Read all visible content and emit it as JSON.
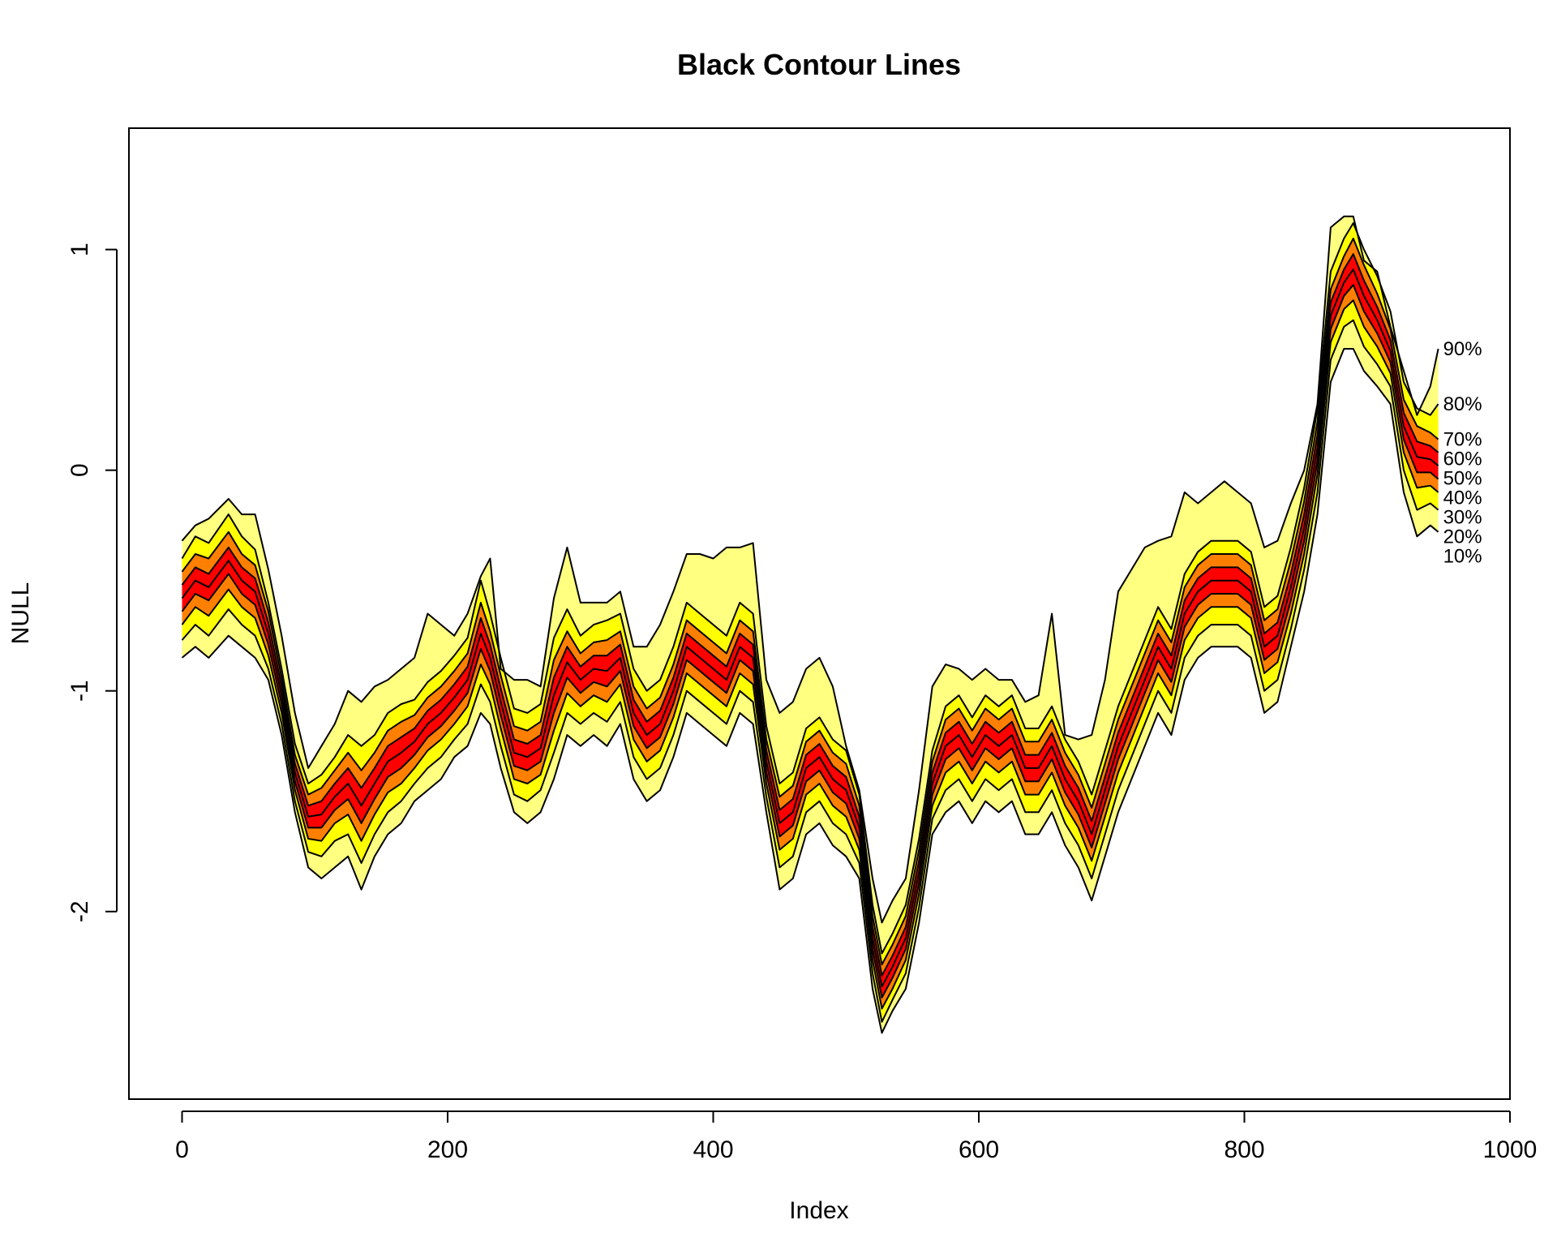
{
  "chart_data": {
    "type": "area",
    "title": "Black Contour Lines",
    "xlabel": "Index",
    "ylabel": "NULL",
    "xlim": [
      -40,
      1000
    ],
    "ylim": [
      -2.85,
      1.55
    ],
    "x_ticks": [
      0,
      200,
      400,
      600,
      800,
      1000
    ],
    "x_tick_labels": [
      "0",
      "200",
      "400",
      "600",
      "800",
      "1000"
    ],
    "y_ticks": [
      -2,
      -1,
      0,
      1
    ],
    "y_tick_labels": [
      "-2",
      "-1",
      "0",
      "1"
    ],
    "grid": false,
    "legend": "none",
    "band_colors": [
      "#ffff80",
      "#ffff00",
      "#ff8000",
      "#ff0000",
      "#ff0000",
      "#ff8000",
      "#ffff00",
      "#ffff80"
    ],
    "contour_color": "#000000",
    "x": [
      0,
      10,
      20,
      35,
      45,
      55,
      65,
      75,
      85,
      95,
      105,
      115,
      125,
      135,
      145,
      155,
      165,
      175,
      185,
      195,
      205,
      215,
      225,
      232,
      240,
      250,
      260,
      270,
      280,
      290,
      300,
      310,
      320,
      330,
      340,
      350,
      360,
      370,
      380,
      390,
      400,
      410,
      420,
      430,
      440,
      450,
      460,
      470,
      480,
      490,
      500,
      510,
      520,
      527,
      535,
      545,
      555,
      565,
      575,
      585,
      595,
      605,
      615,
      625,
      635,
      645,
      655,
      665,
      675,
      685,
      695,
      705,
      715,
      725,
      735,
      745,
      755,
      765,
      775,
      785,
      795,
      805,
      815,
      825,
      835,
      845,
      855,
      865,
      875,
      882,
      890,
      900,
      910,
      920,
      930,
      940,
      946
    ],
    "series": [
      {
        "name": "10%",
        "values": [
          -0.85,
          -0.8,
          -0.85,
          -0.75,
          -0.8,
          -0.85,
          -0.95,
          -1.2,
          -1.55,
          -1.8,
          -1.85,
          -1.8,
          -1.75,
          -1.9,
          -1.75,
          -1.65,
          -1.6,
          -1.5,
          -1.45,
          -1.4,
          -1.3,
          -1.25,
          -1.1,
          -1.15,
          -1.35,
          -1.55,
          -1.6,
          -1.55,
          -1.4,
          -1.2,
          -1.25,
          -1.2,
          -1.25,
          -1.15,
          -1.4,
          -1.5,
          -1.45,
          -1.3,
          -1.1,
          -1.15,
          -1.2,
          -1.25,
          -1.1,
          -1.15,
          -1.55,
          -1.9,
          -1.85,
          -1.65,
          -1.6,
          -1.7,
          -1.75,
          -1.85,
          -2.35,
          -2.55,
          -2.45,
          -2.35,
          -2.05,
          -1.65,
          -1.55,
          -1.5,
          -1.6,
          -1.5,
          -1.55,
          -1.5,
          -1.65,
          -1.65,
          -1.55,
          -1.7,
          -1.8,
          -1.95,
          -1.75,
          -1.55,
          -1.4,
          -1.25,
          -1.1,
          -1.2,
          -0.95,
          -0.85,
          -0.8,
          -0.8,
          -0.8,
          -0.85,
          -1.1,
          -1.05,
          -0.8,
          -0.55,
          -0.2,
          0.4,
          0.55,
          0.55,
          0.45,
          0.38,
          0.3,
          -0.1,
          -0.3,
          -0.25,
          -0.28
        ]
      },
      {
        "name": "20%",
        "values": [
          -0.77,
          -0.7,
          -0.75,
          -0.63,
          -0.7,
          -0.75,
          -0.9,
          -1.15,
          -1.5,
          -1.73,
          -1.75,
          -1.68,
          -1.65,
          -1.78,
          -1.65,
          -1.55,
          -1.5,
          -1.42,
          -1.35,
          -1.3,
          -1.22,
          -1.15,
          -0.97,
          -1.05,
          -1.25,
          -1.47,
          -1.5,
          -1.45,
          -1.28,
          -1.1,
          -1.15,
          -1.1,
          -1.14,
          -1.05,
          -1.3,
          -1.4,
          -1.35,
          -1.2,
          -1.0,
          -1.05,
          -1.1,
          -1.15,
          -1.0,
          -1.05,
          -1.48,
          -1.8,
          -1.75,
          -1.55,
          -1.5,
          -1.6,
          -1.65,
          -1.78,
          -2.28,
          -2.5,
          -2.4,
          -2.28,
          -1.98,
          -1.58,
          -1.45,
          -1.4,
          -1.5,
          -1.4,
          -1.45,
          -1.4,
          -1.55,
          -1.55,
          -1.45,
          -1.6,
          -1.7,
          -1.85,
          -1.65,
          -1.45,
          -1.3,
          -1.15,
          -1.0,
          -1.1,
          -0.85,
          -0.75,
          -0.7,
          -0.7,
          -0.7,
          -0.75,
          -1.0,
          -0.95,
          -0.72,
          -0.45,
          -0.1,
          0.5,
          0.65,
          0.68,
          0.56,
          0.48,
          0.38,
          0.0,
          -0.18,
          -0.15,
          -0.18
        ]
      },
      {
        "name": "30%",
        "values": [
          -0.7,
          -0.62,
          -0.66,
          -0.54,
          -0.62,
          -0.67,
          -0.84,
          -1.1,
          -1.45,
          -1.67,
          -1.68,
          -1.6,
          -1.56,
          -1.68,
          -1.56,
          -1.46,
          -1.42,
          -1.35,
          -1.27,
          -1.22,
          -1.15,
          -1.07,
          -0.88,
          -0.97,
          -1.17,
          -1.4,
          -1.42,
          -1.38,
          -1.18,
          -1.01,
          -1.07,
          -1.02,
          -1.05,
          -0.97,
          -1.22,
          -1.32,
          -1.27,
          -1.12,
          -0.92,
          -0.97,
          -1.02,
          -1.07,
          -0.92,
          -0.97,
          -1.42,
          -1.72,
          -1.67,
          -1.47,
          -1.42,
          -1.52,
          -1.57,
          -1.72,
          -2.22,
          -2.44,
          -2.35,
          -2.22,
          -1.92,
          -1.52,
          -1.37,
          -1.32,
          -1.42,
          -1.32,
          -1.37,
          -1.32,
          -1.47,
          -1.47,
          -1.37,
          -1.52,
          -1.62,
          -1.77,
          -1.57,
          -1.37,
          -1.22,
          -1.07,
          -0.92,
          -1.02,
          -0.77,
          -0.67,
          -0.62,
          -0.62,
          -0.62,
          -0.67,
          -0.92,
          -0.87,
          -0.65,
          -0.38,
          -0.02,
          0.58,
          0.73,
          0.77,
          0.65,
          0.56,
          0.44,
          0.08,
          -0.08,
          -0.07,
          -0.1
        ]
      },
      {
        "name": "40%",
        "values": [
          -0.64,
          -0.56,
          -0.59,
          -0.47,
          -0.56,
          -0.61,
          -0.79,
          -1.06,
          -1.41,
          -1.62,
          -1.62,
          -1.54,
          -1.49,
          -1.6,
          -1.49,
          -1.39,
          -1.35,
          -1.29,
          -1.21,
          -1.16,
          -1.09,
          -1.01,
          -0.81,
          -0.91,
          -1.11,
          -1.34,
          -1.36,
          -1.32,
          -1.1,
          -0.94,
          -1.01,
          -0.96,
          -0.98,
          -0.91,
          -1.16,
          -1.26,
          -1.21,
          -1.06,
          -0.86,
          -0.91,
          -0.96,
          -1.01,
          -0.86,
          -0.91,
          -1.37,
          -1.66,
          -1.61,
          -1.41,
          -1.36,
          -1.46,
          -1.51,
          -1.67,
          -2.17,
          -2.39,
          -2.3,
          -2.17,
          -1.87,
          -1.47,
          -1.31,
          -1.26,
          -1.36,
          -1.26,
          -1.31,
          -1.26,
          -1.41,
          -1.41,
          -1.31,
          -1.46,
          -1.56,
          -1.71,
          -1.51,
          -1.31,
          -1.16,
          -1.01,
          -0.86,
          -0.96,
          -0.71,
          -0.61,
          -0.56,
          -0.56,
          -0.56,
          -0.61,
          -0.86,
          -0.81,
          -0.59,
          -0.32,
          0.04,
          0.64,
          0.79,
          0.84,
          0.72,
          0.62,
          0.49,
          0.14,
          -0.01,
          -0.01,
          -0.04
        ]
      },
      {
        "name": "50%",
        "values": [
          -0.58,
          -0.5,
          -0.53,
          -0.41,
          -0.5,
          -0.55,
          -0.74,
          -1.02,
          -1.37,
          -1.57,
          -1.56,
          -1.48,
          -1.42,
          -1.52,
          -1.42,
          -1.32,
          -1.28,
          -1.23,
          -1.15,
          -1.1,
          -1.03,
          -0.95,
          -0.74,
          -0.85,
          -1.05,
          -1.28,
          -1.3,
          -1.26,
          -1.02,
          -0.87,
          -0.95,
          -0.9,
          -0.91,
          -0.85,
          -1.1,
          -1.2,
          -1.15,
          -1.0,
          -0.8,
          -0.85,
          -0.9,
          -0.95,
          -0.8,
          -0.85,
          -1.32,
          -1.6,
          -1.55,
          -1.35,
          -1.3,
          -1.4,
          -1.45,
          -1.62,
          -2.12,
          -2.34,
          -2.25,
          -2.12,
          -1.82,
          -1.42,
          -1.25,
          -1.2,
          -1.3,
          -1.2,
          -1.25,
          -1.2,
          -1.35,
          -1.35,
          -1.25,
          -1.4,
          -1.5,
          -1.65,
          -1.45,
          -1.25,
          -1.1,
          -0.95,
          -0.8,
          -0.9,
          -0.65,
          -0.55,
          -0.5,
          -0.5,
          -0.5,
          -0.55,
          -0.8,
          -0.75,
          -0.53,
          -0.26,
          0.1,
          0.7,
          0.85,
          0.91,
          0.79,
          0.68,
          0.54,
          0.2,
          0.06,
          0.05,
          0.02
        ]
      },
      {
        "name": "60%",
        "values": [
          -0.52,
          -0.44,
          -0.47,
          -0.35,
          -0.44,
          -0.49,
          -0.69,
          -0.98,
          -1.33,
          -1.52,
          -1.5,
          -1.42,
          -1.35,
          -1.44,
          -1.35,
          -1.25,
          -1.21,
          -1.17,
          -1.09,
          -1.04,
          -0.97,
          -0.89,
          -0.67,
          -0.79,
          -0.99,
          -1.22,
          -1.24,
          -1.2,
          -0.94,
          -0.8,
          -0.89,
          -0.84,
          -0.84,
          -0.79,
          -1.04,
          -1.14,
          -1.09,
          -0.94,
          -0.74,
          -0.79,
          -0.84,
          -0.89,
          -0.74,
          -0.79,
          -1.27,
          -1.54,
          -1.49,
          -1.29,
          -1.24,
          -1.34,
          -1.39,
          -1.57,
          -2.07,
          -2.29,
          -2.2,
          -2.07,
          -1.77,
          -1.37,
          -1.19,
          -1.14,
          -1.24,
          -1.14,
          -1.19,
          -1.14,
          -1.29,
          -1.29,
          -1.19,
          -1.34,
          -1.44,
          -1.59,
          -1.39,
          -1.19,
          -1.04,
          -0.89,
          -0.74,
          -0.84,
          -0.59,
          -0.49,
          -0.44,
          -0.44,
          -0.44,
          -0.49,
          -0.74,
          -0.69,
          -0.47,
          -0.2,
          0.16,
          0.76,
          0.91,
          0.98,
          0.86,
          0.74,
          0.59,
          0.26,
          0.13,
          0.11,
          0.08
        ]
      },
      {
        "name": "70%",
        "values": [
          -0.46,
          -0.38,
          -0.4,
          -0.28,
          -0.38,
          -0.43,
          -0.64,
          -0.94,
          -1.29,
          -1.47,
          -1.44,
          -1.36,
          -1.28,
          -1.36,
          -1.28,
          -1.18,
          -1.14,
          -1.11,
          -1.03,
          -0.98,
          -0.91,
          -0.83,
          -0.6,
          -0.73,
          -0.93,
          -1.16,
          -1.18,
          -1.14,
          -0.86,
          -0.73,
          -0.83,
          -0.78,
          -0.77,
          -0.73,
          -0.98,
          -1.08,
          -1.03,
          -0.88,
          -0.68,
          -0.73,
          -0.78,
          -0.83,
          -0.68,
          -0.73,
          -1.22,
          -1.48,
          -1.43,
          -1.23,
          -1.18,
          -1.28,
          -1.33,
          -1.52,
          -2.02,
          -2.24,
          -2.15,
          -2.02,
          -1.72,
          -1.32,
          -1.13,
          -1.08,
          -1.18,
          -1.08,
          -1.13,
          -1.08,
          -1.23,
          -1.23,
          -1.13,
          -1.28,
          -1.38,
          -1.53,
          -1.33,
          -1.13,
          -0.98,
          -0.83,
          -0.68,
          -0.78,
          -0.53,
          -0.43,
          -0.38,
          -0.38,
          -0.38,
          -0.43,
          -0.68,
          -0.63,
          -0.41,
          -0.14,
          0.22,
          0.82,
          0.97,
          1.05,
          0.93,
          0.8,
          0.64,
          0.32,
          0.2,
          0.17,
          0.14
        ]
      },
      {
        "name": "80%",
        "values": [
          -0.4,
          -0.3,
          -0.33,
          -0.2,
          -0.3,
          -0.36,
          -0.6,
          -0.9,
          -1.24,
          -1.42,
          -1.38,
          -1.3,
          -1.2,
          -1.25,
          -1.2,
          -1.1,
          -1.06,
          -1.04,
          -0.96,
          -0.91,
          -0.84,
          -0.76,
          -0.5,
          -0.65,
          -0.85,
          -1.08,
          -1.1,
          -1.06,
          -0.76,
          -0.63,
          -0.75,
          -0.7,
          -0.68,
          -0.65,
          -0.9,
          -1.0,
          -0.95,
          -0.8,
          -0.6,
          -0.65,
          -0.7,
          -0.75,
          -0.6,
          -0.65,
          -1.16,
          -1.42,
          -1.37,
          -1.17,
          -1.12,
          -1.22,
          -1.27,
          -1.47,
          -1.97,
          -2.19,
          -2.1,
          -1.97,
          -1.67,
          -1.27,
          -1.07,
          -1.02,
          -1.12,
          -1.02,
          -1.07,
          -1.02,
          -1.17,
          -1.17,
          -1.07,
          -1.22,
          -1.32,
          -1.47,
          -1.27,
          -1.07,
          -0.92,
          -0.77,
          -0.62,
          -0.72,
          -0.47,
          -0.37,
          -0.32,
          -0.32,
          -0.32,
          -0.37,
          -0.62,
          -0.57,
          -0.35,
          -0.08,
          0.28,
          0.9,
          1.05,
          1.12,
          1.0,
          0.88,
          0.72,
          0.4,
          0.28,
          0.25,
          0.3
        ]
      },
      {
        "name": "90%",
        "values": [
          -0.32,
          -0.25,
          -0.22,
          -0.13,
          -0.2,
          -0.2,
          -0.45,
          -0.75,
          -1.1,
          -1.35,
          -1.25,
          -1.15,
          -1.0,
          -1.05,
          -0.98,
          -0.95,
          -0.9,
          -0.85,
          -0.65,
          -0.7,
          -0.75,
          -0.65,
          -0.48,
          -0.4,
          -0.9,
          -0.95,
          -0.95,
          -0.98,
          -0.58,
          -0.35,
          -0.6,
          -0.6,
          -0.6,
          -0.55,
          -0.8,
          -0.8,
          -0.7,
          -0.55,
          -0.38,
          -0.38,
          -0.4,
          -0.35,
          -0.35,
          -0.33,
          -0.95,
          -1.1,
          -1.05,
          -0.9,
          -0.85,
          -0.98,
          -1.25,
          -1.45,
          -1.85,
          -2.05,
          -1.95,
          -1.85,
          -1.45,
          -0.98,
          -0.88,
          -0.9,
          -0.95,
          -0.9,
          -0.95,
          -0.95,
          -1.05,
          -1.02,
          -0.65,
          -1.2,
          -1.22,
          -1.2,
          -0.95,
          -0.55,
          -0.45,
          -0.35,
          -0.32,
          -0.3,
          -0.1,
          -0.15,
          -0.1,
          -0.05,
          -0.1,
          -0.15,
          -0.35,
          -0.32,
          -0.15,
          0.0,
          0.3,
          1.1,
          1.15,
          1.15,
          0.95,
          0.9,
          0.65,
          0.45,
          0.25,
          0.38,
          0.55
        ]
      }
    ]
  }
}
